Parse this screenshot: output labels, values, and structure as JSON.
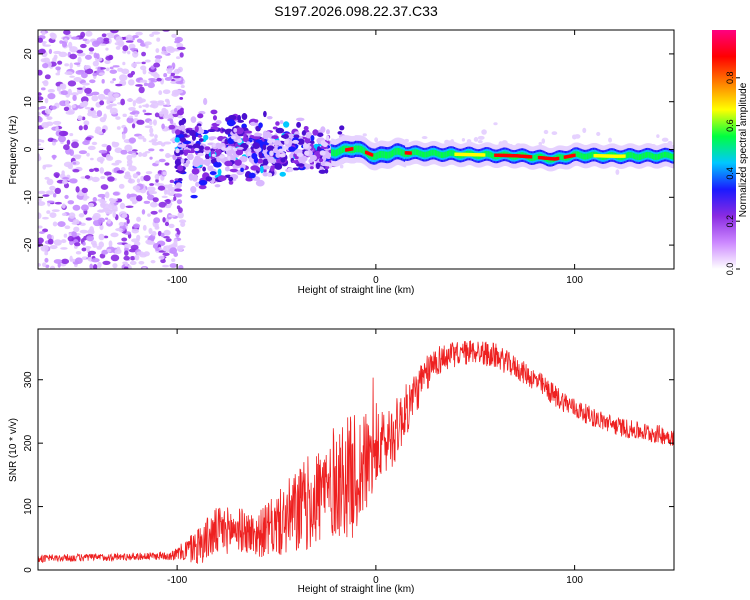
{
  "title": "S197.2026.098.22.37.C33",
  "chart_data": [
    {
      "type": "heatmap",
      "panel": "spectrogram",
      "xlabel": "Height of straight line (km)",
      "ylabel": "Frequency (Hz)",
      "xlim": [
        -170,
        150
      ],
      "ylim": [
        -25,
        25
      ],
      "xticks": [
        -100,
        0,
        100
      ],
      "xtick_labels": [
        "-100",
        "0",
        "100"
      ],
      "yticks": [
        -20,
        -10,
        0,
        10,
        20
      ],
      "ytick_labels": [
        "-20",
        "-10",
        "0",
        "10",
        "20"
      ],
      "colorbar": {
        "label": "Normalized spectral amplitude",
        "range": [
          0,
          1
        ],
        "ticks": [
          0.0,
          0.2,
          0.4,
          0.6,
          0.8
        ],
        "tick_labels": [
          "0.0",
          "0.2",
          "0.4",
          "0.6",
          "0.8"
        ],
        "colors": [
          "#ffffff",
          "#cc88ff",
          "#8a2be2",
          "#1a1aff",
          "#00c8ff",
          "#00ff40",
          "#ffff00",
          "#ff8000",
          "#ff0000",
          "#ff0080"
        ]
      },
      "ridge": {
        "x": [
          -20,
          -10,
          0,
          10,
          20,
          40,
          60,
          70,
          80,
          90,
          100,
          120,
          150
        ],
        "y": [
          -0.5,
          0.3,
          -1.5,
          -0.6,
          -0.8,
          -1.0,
          -1.2,
          -1.3,
          -1.6,
          -2.0,
          -1.2,
          -1.4,
          -1.3
        ]
      },
      "noise_region": {
        "x_range": [
          -170,
          -100
        ],
        "description_amplitude": 0.3
      }
    },
    {
      "type": "line",
      "panel": "snr",
      "xlabel": "Height of straight line (km)",
      "ylabel": "SNR (10 * v/v)",
      "xlim": [
        -170,
        150
      ],
      "ylim": [
        0,
        380
      ],
      "xticks": [
        -100,
        0,
        100
      ],
      "xtick_labels": [
        "-100",
        "0",
        "100"
      ],
      "yticks": [
        0,
        100,
        200,
        300
      ],
      "ytick_labels": [
        "0",
        "100",
        "200",
        "300"
      ],
      "color": "#ee2020",
      "envelope": {
        "x": [
          -170,
          -140,
          -110,
          -100,
          -90,
          -80,
          -70,
          -60,
          -50,
          -40,
          -30,
          -20,
          -10,
          0,
          10,
          20,
          30,
          40,
          50,
          60,
          70,
          80,
          90,
          100,
          110,
          120,
          130,
          140,
          150
        ],
        "mean": [
          18,
          20,
          22,
          25,
          38,
          60,
          65,
          55,
          70,
          90,
          115,
          140,
          150,
          185,
          220,
          280,
          330,
          340,
          345,
          338,
          320,
          300,
          275,
          255,
          240,
          228,
          220,
          215,
          210
        ],
        "noise": [
          6,
          6,
          6,
          10,
          30,
          40,
          35,
          35,
          50,
          70,
          80,
          90,
          100,
          60,
          50,
          35,
          25,
          20,
          20,
          20,
          18,
          18,
          18,
          16,
          15,
          15,
          15,
          15,
          15
        ]
      }
    }
  ]
}
